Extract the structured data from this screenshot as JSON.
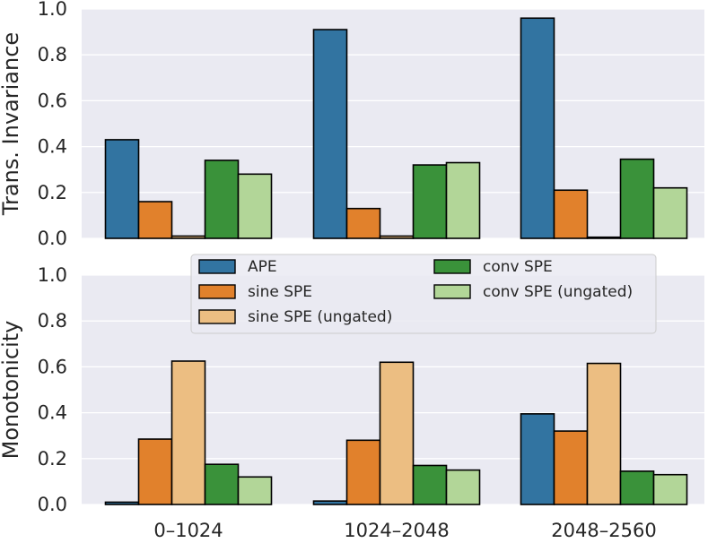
{
  "chart_data": [
    {
      "type": "bar",
      "panel": "top",
      "ylabel": "Trans. Invariance",
      "xlabel": "",
      "ylim": [
        0,
        1.0
      ],
      "yticks": [
        "0.0",
        "0.2",
        "0.4",
        "0.6",
        "0.8",
        "1.0"
      ],
      "grid": true,
      "categories": [
        "0–1024",
        "1024–2048",
        "2048–2560"
      ],
      "series": [
        {
          "name": "APE",
          "values": [
            0.43,
            0.91,
            0.96
          ]
        },
        {
          "name": "sine SPE",
          "values": [
            0.16,
            0.13,
            0.21
          ]
        },
        {
          "name": "sine SPE (ungated)",
          "values": [
            0.01,
            0.01,
            0.005
          ]
        },
        {
          "name": "conv SPE",
          "values": [
            0.34,
            0.32,
            0.345
          ]
        },
        {
          "name": "conv SPE (ungated)",
          "values": [
            0.28,
            0.33,
            0.22
          ]
        }
      ]
    },
    {
      "type": "bar",
      "panel": "bottom",
      "ylabel": "Monotonicity",
      "xlabel": "",
      "ylim": [
        0,
        1.0
      ],
      "yticks": [
        "0.0",
        "0.2",
        "0.4",
        "0.6",
        "0.8",
        "1.0"
      ],
      "grid": true,
      "categories": [
        "0–1024",
        "1024–2048",
        "2048–2560"
      ],
      "series": [
        {
          "name": "APE",
          "values": [
            0.01,
            0.015,
            0.395
          ]
        },
        {
          "name": "sine SPE",
          "values": [
            0.285,
            0.28,
            0.32
          ]
        },
        {
          "name": "sine SPE (ungated)",
          "values": [
            0.625,
            0.62,
            0.615
          ]
        },
        {
          "name": "conv SPE",
          "values": [
            0.175,
            0.17,
            0.145
          ]
        },
        {
          "name": "conv SPE (ungated)",
          "values": [
            0.12,
            0.15,
            0.13
          ]
        }
      ]
    }
  ],
  "legend": {
    "position": "top-center of lower panel",
    "entries": [
      "APE",
      "sine SPE",
      "sine SPE (ungated)",
      "conv SPE",
      "conv SPE (ungated)"
    ]
  },
  "colors": {
    "APE": "#3274a1",
    "sine SPE": "#e1812c",
    "sine SPE (ungated)": "#ecbe82",
    "conv SPE": "#3a923a",
    "conv SPE (ungated)": "#b2d698",
    "plot_bg": "#eaeaf2",
    "grid": "#ffffff",
    "bar_edge": "#000000"
  }
}
